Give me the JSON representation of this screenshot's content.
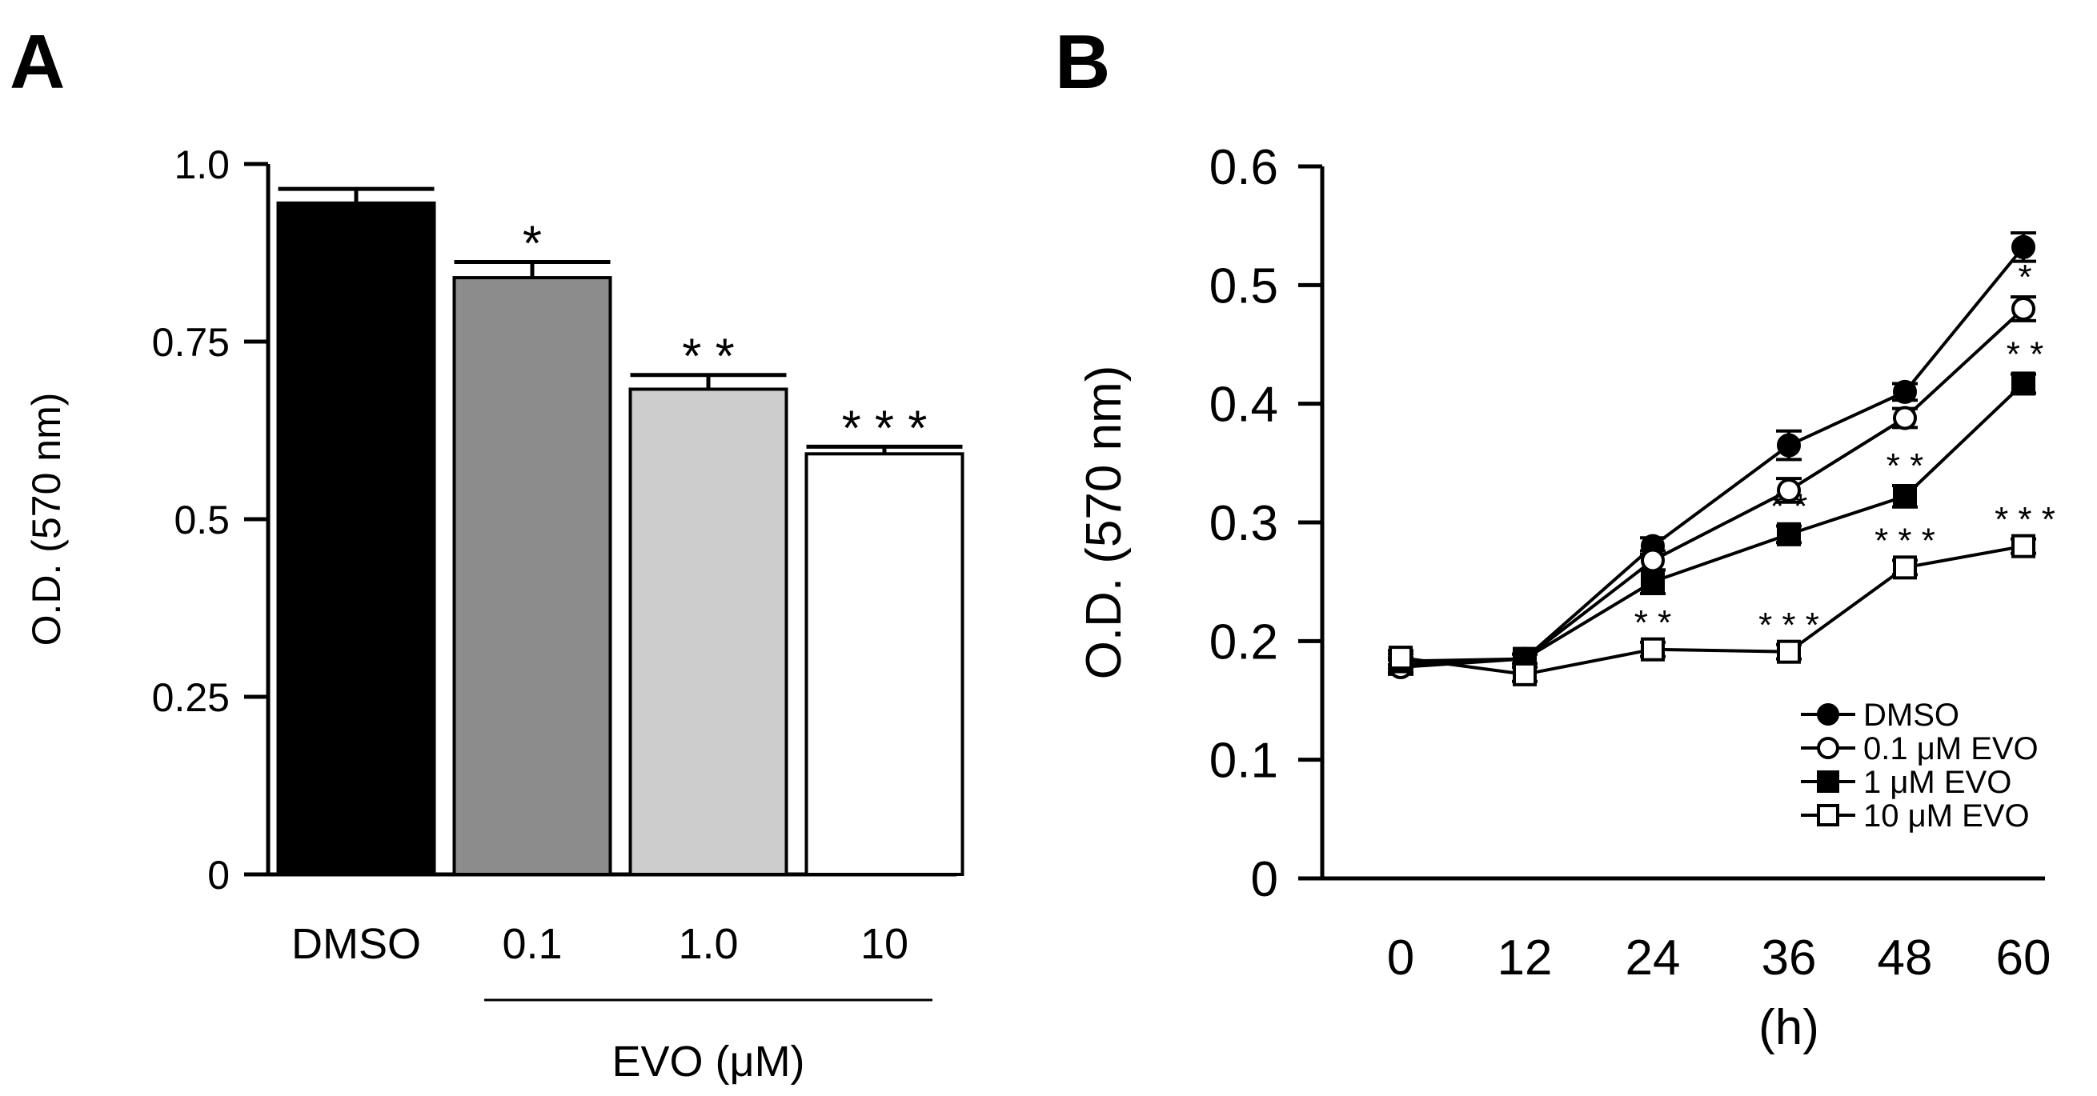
{
  "panels": {
    "a": "A",
    "b": "B"
  },
  "colors": {
    "DMSO": "#000000",
    "0.1": "#8c8c8c",
    "1.0": "#cdcdcd",
    "10": "#ffffff",
    "axis": "#000000"
  },
  "chart_data": [
    {
      "panel": "A",
      "type": "bar",
      "title": "",
      "ylabel": "O.D. (570 nm)",
      "xlabel": "EVO (μM)",
      "ylim": [
        0,
        1.0
      ],
      "yticks": [
        0,
        0.25,
        0.5,
        0.75,
        1.0
      ],
      "ytick_labels": [
        "0",
        "0.25",
        "0.5",
        "0.75",
        "1.0"
      ],
      "categories": [
        "DMSO",
        "0.1",
        "1.0",
        "10"
      ],
      "values": [
        0.945,
        0.84,
        0.683,
        0.592
      ],
      "errors": [
        0.02,
        0.022,
        0.02,
        0.01
      ],
      "significance": [
        "",
        "*",
        "* *",
        "* * *"
      ],
      "grid": false
    },
    {
      "panel": "B",
      "type": "line",
      "title": "",
      "ylabel": "O.D. (570 nm)",
      "xlabel": "(h)",
      "ylim": [
        0,
        0.6
      ],
      "yticks": [
        0,
        0.1,
        0.2,
        0.3,
        0.4,
        0.5,
        0.6
      ],
      "ytick_labels": [
        "0",
        "0.1",
        "0.2",
        "0.3",
        "0.4",
        "0.5",
        "0.6"
      ],
      "x": [
        0,
        12,
        24,
        36,
        48,
        60
      ],
      "xtick_labels": [
        "0",
        "12",
        "24",
        "36",
        "48",
        "60"
      ],
      "legend_position": "bottom-right",
      "grid": false,
      "series": [
        {
          "name": "DMSO",
          "marker": "filled-circle",
          "values": [
            0.18,
            0.185,
            0.28,
            0.365,
            0.41,
            0.532
          ],
          "errors": [
            0.006,
            0.004,
            0.007,
            0.012,
            0.007,
            0.012
          ],
          "significance": [
            "",
            "",
            "",
            "",
            "",
            ""
          ]
        },
        {
          "name": "0.1 μM EVO",
          "marker": "open-circle",
          "values": [
            0.178,
            0.185,
            0.268,
            0.327,
            0.388,
            0.48
          ],
          "errors": [
            0.006,
            0.004,
            0.008,
            0.01,
            0.008,
            0.01
          ],
          "significance": [
            "",
            "",
            "",
            "",
            "",
            "*"
          ]
        },
        {
          "name": "1 μM EVO",
          "marker": "filled-square",
          "values": [
            0.183,
            0.185,
            0.25,
            0.29,
            0.322,
            0.417
          ],
          "errors": [
            0.006,
            0.004,
            0.01,
            0.007,
            0.009,
            0.008
          ],
          "significance": [
            "",
            "",
            "",
            "* *",
            "* *",
            "* *"
          ]
        },
        {
          "name": "10 μM EVO",
          "marker": "open-square",
          "values": [
            0.186,
            0.172,
            0.193,
            0.191,
            0.262,
            0.28
          ],
          "errors": [
            0.006,
            0.006,
            0.006,
            0.006,
            0.006,
            0.006
          ],
          "significance": [
            "",
            "",
            "* *",
            "* * *",
            "* * *",
            "* * *"
          ]
        }
      ]
    }
  ]
}
